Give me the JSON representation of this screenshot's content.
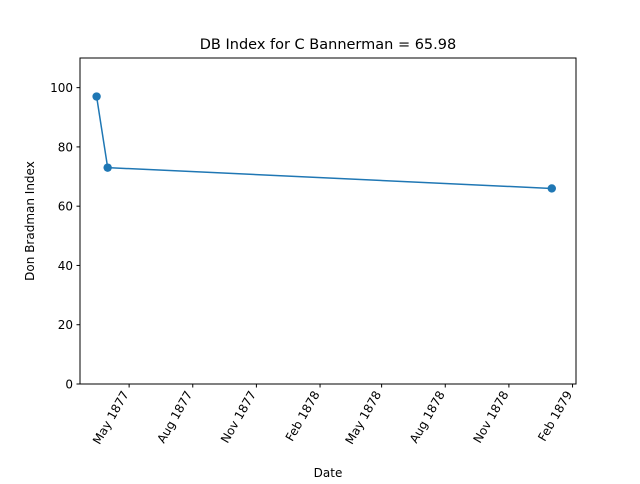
{
  "chart_data": {
    "type": "line",
    "title": "DB Index for C Bannerman = 65.98",
    "xlabel": "Date",
    "ylabel": "Don Bradman Index",
    "xlim": [
      "1877-02-19",
      "1879-02-06"
    ],
    "ylim": [
      0,
      110
    ],
    "x_ticks": [
      {
        "date": "1877-05-01",
        "label": "May 1877"
      },
      {
        "date": "1877-08-01",
        "label": "Aug 1877"
      },
      {
        "date": "1877-11-01",
        "label": "Nov 1877"
      },
      {
        "date": "1878-02-01",
        "label": "Feb 1878"
      },
      {
        "date": "1878-05-01",
        "label": "May 1878"
      },
      {
        "date": "1878-08-01",
        "label": "Aug 1878"
      },
      {
        "date": "1878-11-01",
        "label": "Nov 1878"
      },
      {
        "date": "1879-02-01",
        "label": "Feb 1879"
      }
    ],
    "y_ticks": [
      0,
      20,
      40,
      60,
      80,
      100
    ],
    "grid": false,
    "series": [
      {
        "color": "#1f77b4",
        "marker": "circle",
        "points": [
          {
            "x": "1877-03-15",
            "y": 97
          },
          {
            "x": "1877-03-31",
            "y": 73
          },
          {
            "x": "1879-01-02",
            "y": 65.98
          }
        ]
      }
    ]
  }
}
